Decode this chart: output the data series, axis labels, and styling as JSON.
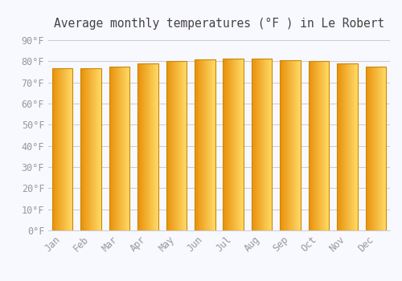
{
  "categories": [
    "Jan",
    "Feb",
    "Mar",
    "Apr",
    "May",
    "Jun",
    "Jul",
    "Aug",
    "Sep",
    "Oct",
    "Nov",
    "Dec"
  ],
  "values": [
    76.5,
    76.5,
    77.5,
    78.8,
    80.0,
    81.0,
    81.2,
    81.2,
    80.6,
    80.1,
    79.0,
    77.5
  ],
  "bar_color_left": "#E8900A",
  "bar_color_right": "#FFD966",
  "bar_edge_color": "#CC8800",
  "title": "Average monthly temperatures (°F ) in Le Robert",
  "ylabel_ticks": [
    "0°F",
    "10°F",
    "20°F",
    "30°F",
    "40°F",
    "50°F",
    "60°F",
    "70°F",
    "80°F",
    "90°F"
  ],
  "ytick_values": [
    0,
    10,
    20,
    30,
    40,
    50,
    60,
    70,
    80,
    90
  ],
  "ylim": [
    0,
    93
  ],
  "background_color": "#F8F8FF",
  "grid_color": "#CCCCCC",
  "title_fontsize": 10.5,
  "tick_fontsize": 8.5,
  "font_family": "monospace"
}
